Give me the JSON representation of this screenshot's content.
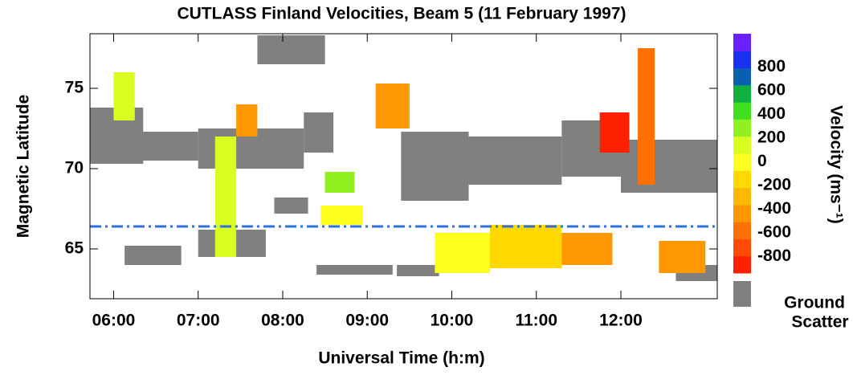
{
  "chart_data": {
    "type": "rti",
    "title": "CUTLASS Finland Velocities, Beam 5  (11 February 1997)",
    "x_label": "Universal Time (h:m)",
    "y_label": "Magnetic Latitude",
    "xlim": [
      5.72,
      13.14
    ],
    "ylim": [
      61.9,
      78.4
    ],
    "xticks": [
      {
        "value": 6,
        "label": "06:00"
      },
      {
        "value": 7,
        "label": "07:00"
      },
      {
        "value": 8,
        "label": "08:00"
      },
      {
        "value": 9,
        "label": "09:00"
      },
      {
        "value": 10,
        "label": "10:00"
      },
      {
        "value": 11,
        "label": "11:00"
      },
      {
        "value": 12,
        "label": "12:00"
      }
    ],
    "yticks": [
      65,
      70,
      75
    ],
    "reference_latitude": 66.4,
    "reference_color": "#2f6fe0",
    "ground_scatter_color": "#808080",
    "ground_scatter_label": [
      "Ground",
      "Scatter"
    ],
    "colorbar": {
      "label": "Velocity (ms⁻¹)",
      "clim": [
        -940,
        1080
      ],
      "colors": [
        "#ff2000",
        "#ff4a00",
        "#ff7000",
        "#ff9800",
        "#ffb800",
        "#ffd800",
        "#ffff20",
        "#d8ff20",
        "#90f020",
        "#40e020",
        "#10b040",
        "#0a60b0",
        "#1a30f0",
        "#6a20ff"
      ],
      "ticks": [
        800,
        600,
        400,
        200,
        0,
        -200,
        -400,
        -600,
        -800
      ]
    },
    "ground_cells": [
      {
        "t": [
          5.72,
          6.35
        ],
        "lat": [
          70.3,
          73.8
        ]
      },
      {
        "t": [
          6.3,
          7.0
        ],
        "lat": [
          70.5,
          72.3
        ]
      },
      {
        "t": [
          7.0,
          8.25
        ],
        "lat": [
          70.0,
          72.5
        ]
      },
      {
        "t": [
          8.25,
          8.6
        ],
        "lat": [
          71.0,
          73.5
        ]
      },
      {
        "t": [
          7.7,
          8.5
        ],
        "lat": [
          76.5,
          78.3
        ]
      },
      {
        "t": [
          9.4,
          10.2
        ],
        "lat": [
          68.0,
          72.3
        ]
      },
      {
        "t": [
          10.2,
          11.3
        ],
        "lat": [
          69.0,
          72.0
        ]
      },
      {
        "t": [
          11.3,
          12.0
        ],
        "lat": [
          69.5,
          73.0
        ]
      },
      {
        "t": [
          12.0,
          13.14
        ],
        "lat": [
          68.5,
          71.8
        ]
      },
      {
        "t": [
          8.4,
          9.3
        ],
        "lat": [
          63.4,
          64.0
        ]
      },
      {
        "t": [
          9.35,
          9.85
        ],
        "lat": [
          63.3,
          64.0
        ]
      },
      {
        "t": [
          6.13,
          6.8
        ],
        "lat": [
          64.0,
          65.2
        ]
      },
      {
        "t": [
          7.0,
          7.8
        ],
        "lat": [
          64.5,
          66.2
        ]
      },
      {
        "t": [
          12.65,
          13.14
        ],
        "lat": [
          63.0,
          64.0
        ]
      },
      {
        "t": [
          7.9,
          8.3
        ],
        "lat": [
          67.2,
          68.2
        ]
      }
    ],
    "velocity_cells": [
      {
        "t": [
          7.2,
          7.45
        ],
        "lat": [
          64.5,
          72.0
        ],
        "v": 150
      },
      {
        "t": [
          7.45,
          7.7
        ],
        "lat": [
          72.0,
          74.0
        ],
        "v": -400
      },
      {
        "t": [
          9.1,
          9.5
        ],
        "lat": [
          72.5,
          75.3
        ],
        "v": -400
      },
      {
        "t": [
          9.8,
          10.45
        ],
        "lat": [
          63.5,
          66.0
        ],
        "v": -50
      },
      {
        "t": [
          10.45,
          11.3
        ],
        "lat": [
          63.8,
          66.5
        ],
        "v": -100
      },
      {
        "t": [
          11.3,
          11.9
        ],
        "lat": [
          64.0,
          66.0
        ],
        "v": -400
      },
      {
        "t": [
          11.75,
          12.1
        ],
        "lat": [
          71.0,
          73.5
        ],
        "v": -800
      },
      {
        "t": [
          12.2,
          12.4
        ],
        "lat": [
          69.0,
          77.5
        ],
        "v": -600
      },
      {
        "t": [
          12.45,
          13.0
        ],
        "lat": [
          63.5,
          65.5
        ],
        "v": -500
      },
      {
        "t": [
          8.5,
          8.85
        ],
        "lat": [
          68.5,
          69.8
        ],
        "v": 250
      },
      {
        "t": [
          6.0,
          6.25
        ],
        "lat": [
          73.0,
          76.0
        ],
        "v": 150
      },
      {
        "t": [
          8.45,
          8.95
        ],
        "lat": [
          66.5,
          67.7
        ],
        "v": 50
      }
    ]
  }
}
